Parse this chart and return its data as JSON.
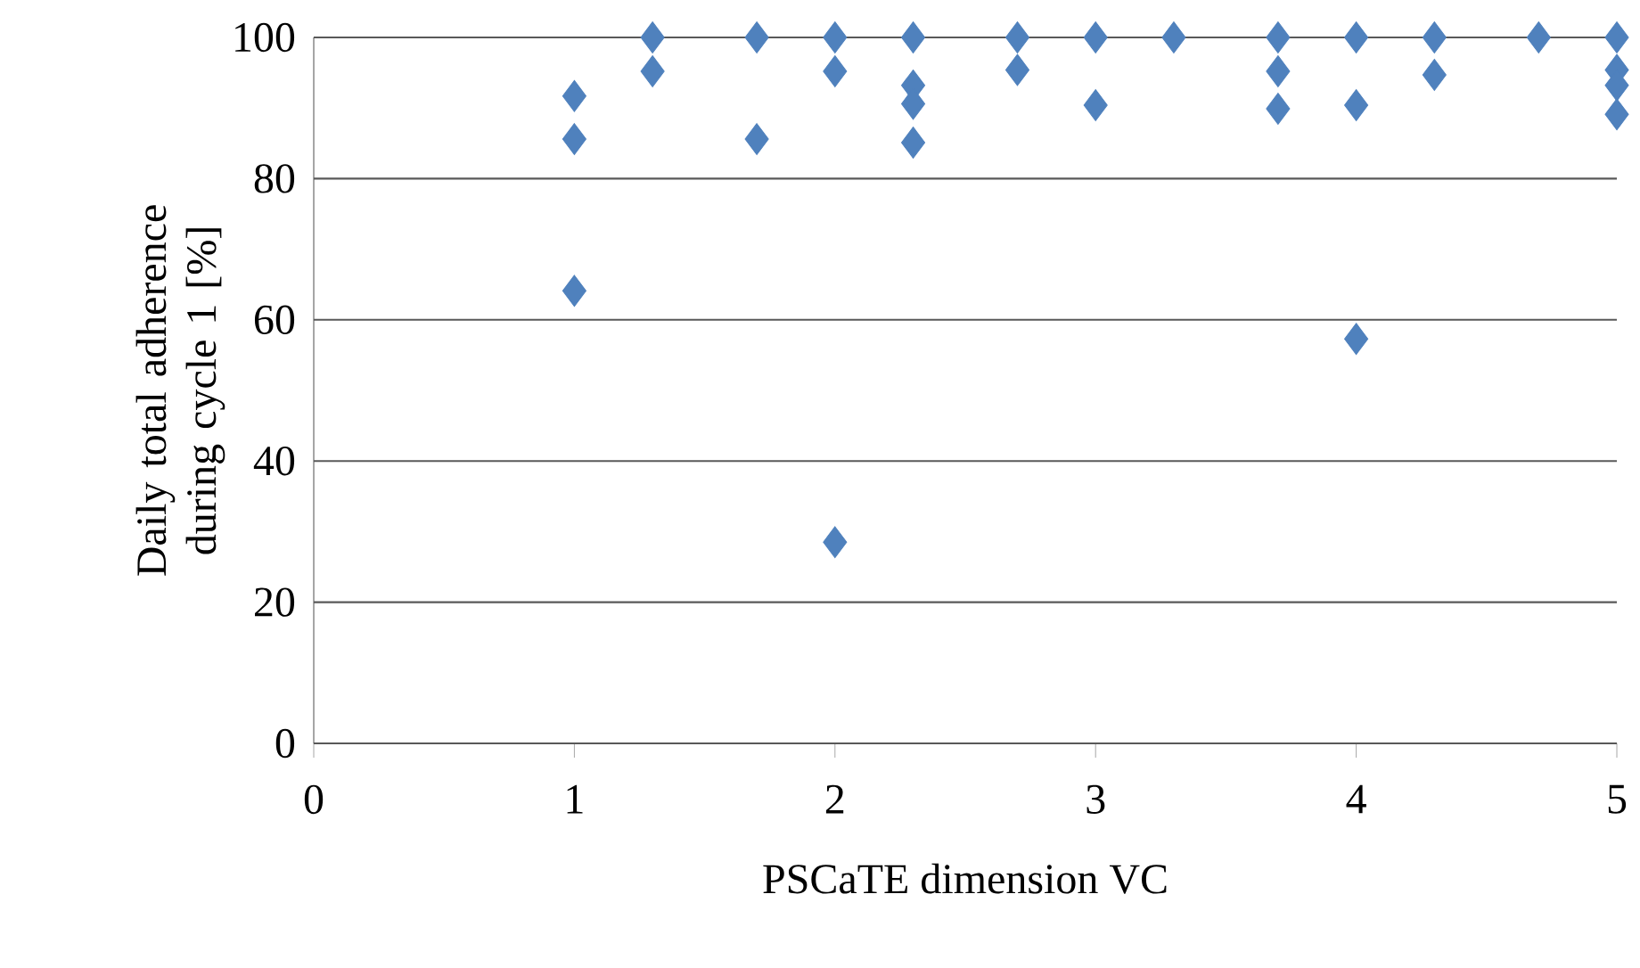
{
  "chart_data": {
    "type": "scatter",
    "xlabel": "PSCaTE dimension VC",
    "ylabel": "Daily total adherence during cycle 1 [%]",
    "xlim": [
      0,
      5
    ],
    "ylim": [
      0,
      100
    ],
    "xticks": [
      0,
      1,
      2,
      3,
      4,
      5
    ],
    "yticks": [
      0,
      20,
      40,
      60,
      80,
      100
    ],
    "grid": "y",
    "marker": "diamond",
    "series": [
      {
        "color": "#4f81bd",
        "x": [
          1,
          1,
          1,
          1.3,
          1.3,
          1.7,
          1.7,
          2,
          2,
          2,
          2.3,
          2.3,
          2.3,
          2.3,
          2.7,
          2.7,
          3,
          3,
          3.3,
          3.7,
          3.7,
          3.7,
          4,
          4,
          4,
          4.3,
          4.3,
          4.7,
          5,
          5,
          5,
          5
        ],
        "values": [
          91.7,
          85.6,
          64.1,
          100,
          95.2,
          100,
          85.6,
          100,
          95.2,
          28.5,
          100,
          93.2,
          90.6,
          85.1,
          100,
          95.4,
          100,
          90.4,
          100,
          100,
          95.2,
          89.9,
          100,
          90.4,
          57.3,
          100,
          94.7,
          100,
          100,
          95.4,
          93.2,
          89.1
        ]
      }
    ]
  }
}
